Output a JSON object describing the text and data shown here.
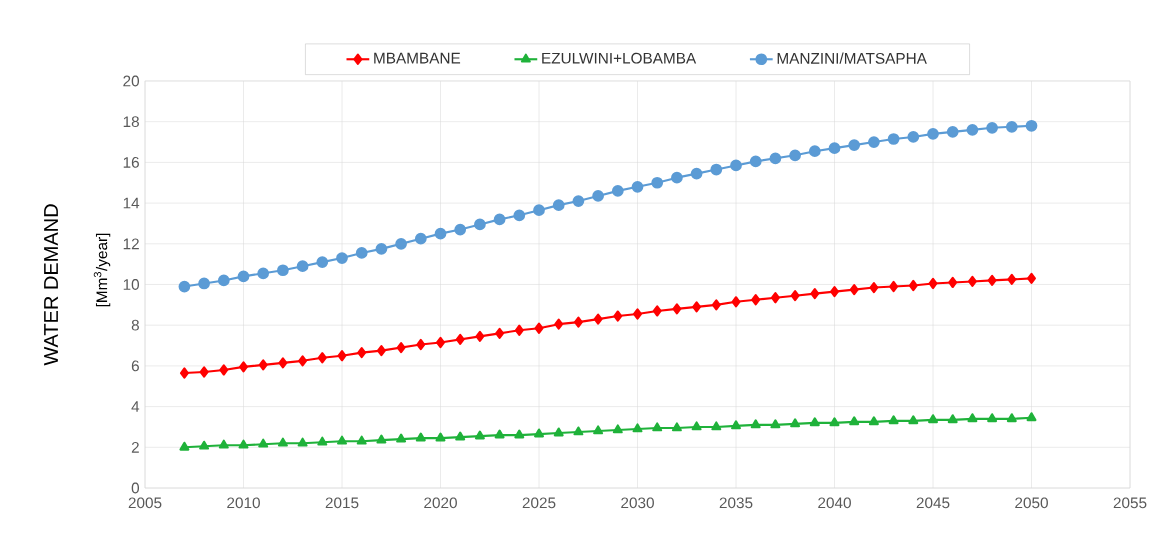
{
  "chart_data": {
    "type": "line",
    "ylabel": "WATER DEMAND",
    "annotations": [
      "[Mm$^{3}$/year]"
    ],
    "x": [
      2007,
      2008,
      2009,
      2010,
      2011,
      2012,
      2013,
      2014,
      2015,
      2016,
      2017,
      2018,
      2019,
      2020,
      2021,
      2022,
      2023,
      2024,
      2025,
      2026,
      2027,
      2028,
      2029,
      2030,
      2031,
      2032,
      2033,
      2034,
      2035,
      2036,
      2037,
      2038,
      2039,
      2040,
      2041,
      2042,
      2043,
      2044,
      2045,
      2046,
      2047,
      2048,
      2049,
      2050
    ],
    "series": [
      {
        "name": "MBAMBANE",
        "color": "#ff0000",
        "marker": "diamond",
        "values": [
          5.65,
          5.7,
          5.8,
          5.95,
          6.05,
          6.15,
          6.25,
          6.4,
          6.5,
          6.65,
          6.75,
          6.9,
          7.05,
          7.15,
          7.3,
          7.45,
          7.6,
          7.75,
          7.85,
          8.05,
          8.15,
          8.3,
          8.45,
          8.55,
          8.7,
          8.8,
          8.9,
          9.0,
          9.15,
          9.25,
          9.35,
          9.45,
          9.55,
          9.65,
          9.75,
          9.85,
          9.9,
          9.95,
          10.05,
          10.1,
          10.15,
          10.2,
          10.25,
          10.3
        ]
      },
      {
        "name": "EZULWINI+LOBAMBA",
        "color": "#1fb23a",
        "marker": "triangle",
        "values": [
          2.0,
          2.05,
          2.1,
          2.1,
          2.15,
          2.2,
          2.2,
          2.25,
          2.3,
          2.3,
          2.35,
          2.4,
          2.45,
          2.45,
          2.5,
          2.55,
          2.6,
          2.6,
          2.65,
          2.7,
          2.75,
          2.8,
          2.85,
          2.9,
          2.95,
          2.95,
          3.0,
          3.0,
          3.05,
          3.1,
          3.1,
          3.15,
          3.2,
          3.2,
          3.25,
          3.25,
          3.3,
          3.3,
          3.35,
          3.35,
          3.4,
          3.4,
          3.4,
          3.45
        ]
      },
      {
        "name": "MANZINI/MATSAPHA",
        "color": "#5b9bd5",
        "marker": "circle",
        "values": [
          9.9,
          10.05,
          10.2,
          10.4,
          10.55,
          10.7,
          10.9,
          11.1,
          11.3,
          11.55,
          11.75,
          12.0,
          12.25,
          12.5,
          12.7,
          12.95,
          13.2,
          13.4,
          13.65,
          13.9,
          14.1,
          14.35,
          14.6,
          14.8,
          15.0,
          15.25,
          15.45,
          15.65,
          15.85,
          16.05,
          16.2,
          16.35,
          16.55,
          16.7,
          16.85,
          17.0,
          17.15,
          17.25,
          17.4,
          17.5,
          17.6,
          17.7,
          17.75,
          17.8
        ]
      }
    ],
    "xlim": [
      2005,
      2055
    ],
    "xticks": [
      2005,
      2010,
      2015,
      2020,
      2025,
      2030,
      2035,
      2040,
      2045,
      2050,
      2055
    ],
    "ylim": [
      0,
      20
    ],
    "yticks": [
      0,
      2,
      4,
      6,
      8,
      10,
      12,
      14,
      16,
      18,
      20
    ],
    "grid": true,
    "legend": "top",
    "line_style": "solid"
  }
}
